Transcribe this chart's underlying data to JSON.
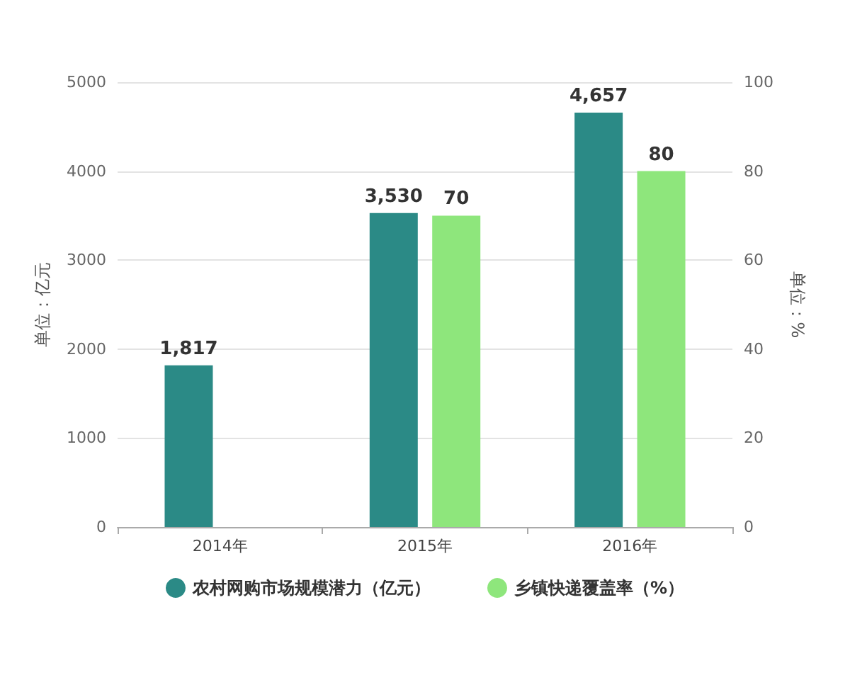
{
  "chart_data": {
    "type": "bar",
    "categories": [
      "2014年",
      "2015年",
      "2016年"
    ],
    "ylabel": "单位：亿元",
    "y2label": "单位：%",
    "ylim": [
      0,
      5000
    ],
    "yticks": [
      0,
      1000,
      2000,
      3000,
      4000,
      5000
    ],
    "y2lim": [
      0,
      100
    ],
    "y2ticks": [
      0,
      20,
      40,
      60,
      80,
      100
    ],
    "grid": "y",
    "legend": "bottom",
    "series": [
      {
        "name": "农村网购市场规模潜力（亿元）",
        "color": "#2b8a86",
        "values": [
          1817,
          3530,
          4657
        ],
        "value_labels": [
          "1,817",
          "3,530",
          "4,657"
        ]
      },
      {
        "name": "乡镇快递覆盖率（%）",
        "color": "#8ee67c",
        "axis": "y2",
        "values": [
          null,
          70,
          80
        ],
        "value_labels": [
          null,
          "70",
          "80"
        ]
      }
    ]
  }
}
